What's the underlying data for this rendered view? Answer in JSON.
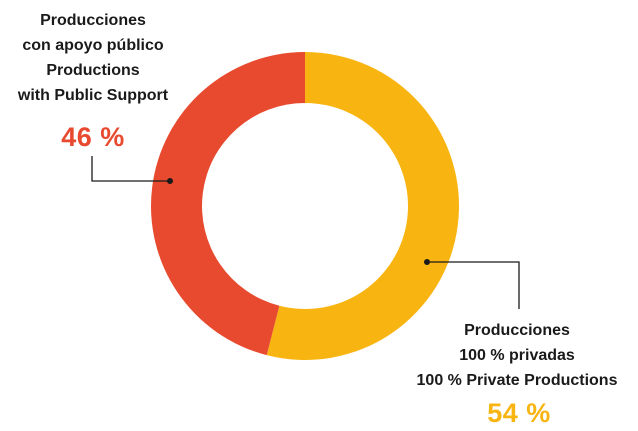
{
  "colors": {
    "public": "#e84a2f",
    "private": "#f8b511",
    "text": "#1a1a1a",
    "leader": "#1a1a1a"
  },
  "chart_data": {
    "type": "pie",
    "style": "donut",
    "title": "",
    "categories": [
      "Producciones con apoyo público / Productions with Public Support",
      "Producciones 100 % privadas / 100 % Private Productions"
    ],
    "values": [
      46,
      54
    ],
    "unit": "%",
    "annotations": [
      {
        "lines": [
          "Producciones",
          "con apoyo público",
          "Productions",
          "with Public Support"
        ],
        "value_label": "46 %",
        "color": "#e84a2f"
      },
      {
        "lines": [
          "Producciones",
          "100 % privadas",
          "100 % Private Productions"
        ],
        "value_label": "54 %",
        "color": "#f8b511"
      }
    ]
  }
}
